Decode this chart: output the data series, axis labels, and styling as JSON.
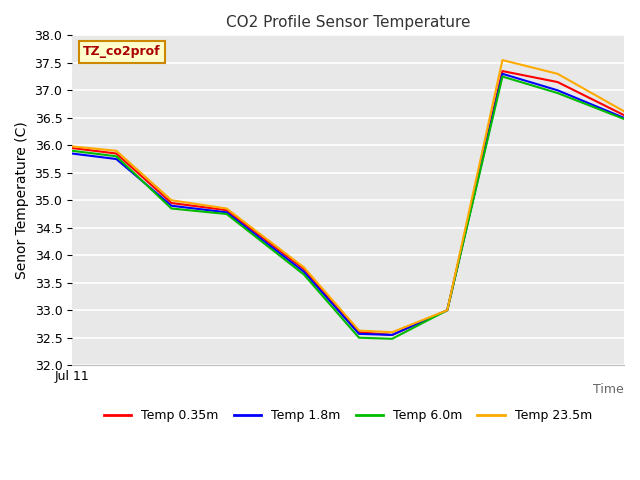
{
  "title": "CO2 Profile Sensor Temperature",
  "ylabel": "Senor Temperature (C)",
  "xlabel": "Time",
  "xticklabel": "Jul 11",
  "ylim": [
    32.0,
    38.0
  ],
  "yticks": [
    32.0,
    32.5,
    33.0,
    33.5,
    34.0,
    34.5,
    35.0,
    35.5,
    36.0,
    36.5,
    37.0,
    37.5,
    38.0
  ],
  "bg_color": "#e8e8e8",
  "annotation_text": "TZ_co2prof",
  "annotation_bg": "#ffffcc",
  "annotation_border": "#cc8800",
  "annotation_text_color": "#aa0000",
  "series": [
    {
      "label": "Temp 0.35m",
      "color": "#ff0000",
      "x": [
        0.0,
        0.08,
        0.18,
        0.28,
        0.42,
        0.52,
        0.58,
        0.68,
        0.78,
        0.88,
        1.0
      ],
      "y": [
        35.95,
        35.85,
        34.95,
        34.82,
        33.75,
        32.6,
        32.55,
        33.0,
        37.35,
        37.15,
        36.55
      ]
    },
    {
      "label": "Temp 1.8m",
      "color": "#0000ff",
      "x": [
        0.0,
        0.08,
        0.18,
        0.28,
        0.42,
        0.52,
        0.58,
        0.68,
        0.78,
        0.88,
        1.0
      ],
      "y": [
        35.85,
        35.75,
        34.9,
        34.78,
        33.7,
        32.57,
        32.55,
        33.0,
        37.3,
        37.0,
        36.5
      ]
    },
    {
      "label": "Temp 6.0m",
      "color": "#00bb00",
      "x": [
        0.0,
        0.08,
        0.18,
        0.28,
        0.42,
        0.52,
        0.58,
        0.68,
        0.78,
        0.88,
        1.0
      ],
      "y": [
        35.9,
        35.8,
        34.85,
        34.75,
        33.65,
        32.5,
        32.48,
        33.0,
        37.25,
        36.95,
        36.48
      ]
    },
    {
      "label": "Temp 23.5m",
      "color": "#ffaa00",
      "x": [
        0.0,
        0.08,
        0.18,
        0.28,
        0.42,
        0.52,
        0.58,
        0.68,
        0.78,
        0.88,
        1.0
      ],
      "y": [
        35.98,
        35.9,
        35.0,
        34.85,
        33.78,
        32.63,
        32.6,
        33.0,
        37.55,
        37.3,
        36.62
      ]
    }
  ],
  "figsize": [
    6.4,
    4.8
  ],
  "dpi": 100
}
